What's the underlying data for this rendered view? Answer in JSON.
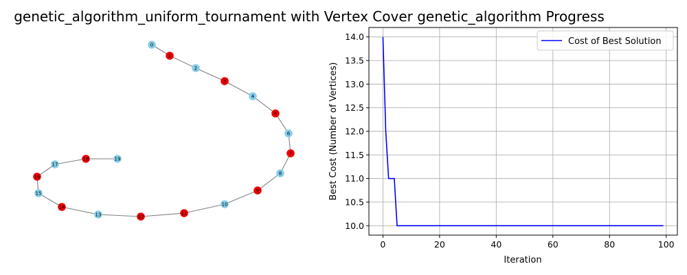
{
  "title": "genetic_algorithm_uniform_tournament with Vertex Cover  genetic_algorithm Progress",
  "colors": {
    "cover_node": "#ee0000",
    "other_node": "#87ceeb",
    "edge": "#808080",
    "line": "#0000ff",
    "grid": "#b0b0b0"
  },
  "chart_data": [
    {
      "type": "graph",
      "nodes": [
        {
          "id": "0",
          "in_cover": false
        },
        {
          "id": "1",
          "in_cover": true
        },
        {
          "id": "2",
          "in_cover": false
        },
        {
          "id": "3",
          "in_cover": true
        },
        {
          "id": "4",
          "in_cover": false
        },
        {
          "id": "5",
          "in_cover": true
        },
        {
          "id": "6",
          "in_cover": false
        },
        {
          "id": "7",
          "in_cover": true
        },
        {
          "id": "8",
          "in_cover": false
        },
        {
          "id": "9",
          "in_cover": true
        },
        {
          "id": "10",
          "in_cover": false
        },
        {
          "id": "11",
          "in_cover": true
        },
        {
          "id": "12",
          "in_cover": true
        },
        {
          "id": "13",
          "in_cover": false
        },
        {
          "id": "14",
          "in_cover": true
        },
        {
          "id": "15",
          "in_cover": false
        },
        {
          "id": "16",
          "in_cover": true
        },
        {
          "id": "17",
          "in_cover": false
        },
        {
          "id": "18",
          "in_cover": true
        },
        {
          "id": "19",
          "in_cover": false
        }
      ],
      "edges": [
        [
          "0",
          "1"
        ],
        [
          "1",
          "2"
        ],
        [
          "2",
          "3"
        ],
        [
          "3",
          "4"
        ],
        [
          "4",
          "5"
        ],
        [
          "5",
          "6"
        ],
        [
          "6",
          "7"
        ],
        [
          "7",
          "8"
        ],
        [
          "8",
          "9"
        ],
        [
          "9",
          "10"
        ],
        [
          "10",
          "11"
        ],
        [
          "11",
          "12"
        ],
        [
          "12",
          "13"
        ],
        [
          "13",
          "14"
        ],
        [
          "14",
          "15"
        ],
        [
          "15",
          "16"
        ],
        [
          "16",
          "17"
        ],
        [
          "17",
          "18"
        ],
        [
          "18",
          "19"
        ]
      ]
    },
    {
      "type": "line",
      "xlabel": "Iteration",
      "ylabel": "Best Cost (Number of Vertices)",
      "xlim": [
        -4.95,
        103.95
      ],
      "ylim": [
        9.8,
        14.2
      ],
      "xticks": [
        0,
        20,
        40,
        60,
        80,
        100
      ],
      "yticks": [
        10.0,
        10.5,
        11.0,
        11.5,
        12.0,
        12.5,
        13.0,
        13.5,
        14.0
      ],
      "grid": true,
      "legend_position": "top-right",
      "series": [
        {
          "name": "Cost of Best Solution",
          "x": [
            0,
            1,
            2,
            3,
            4,
            5,
            99
          ],
          "y": [
            14,
            12,
            11,
            11,
            11,
            10,
            10
          ]
        }
      ]
    }
  ]
}
